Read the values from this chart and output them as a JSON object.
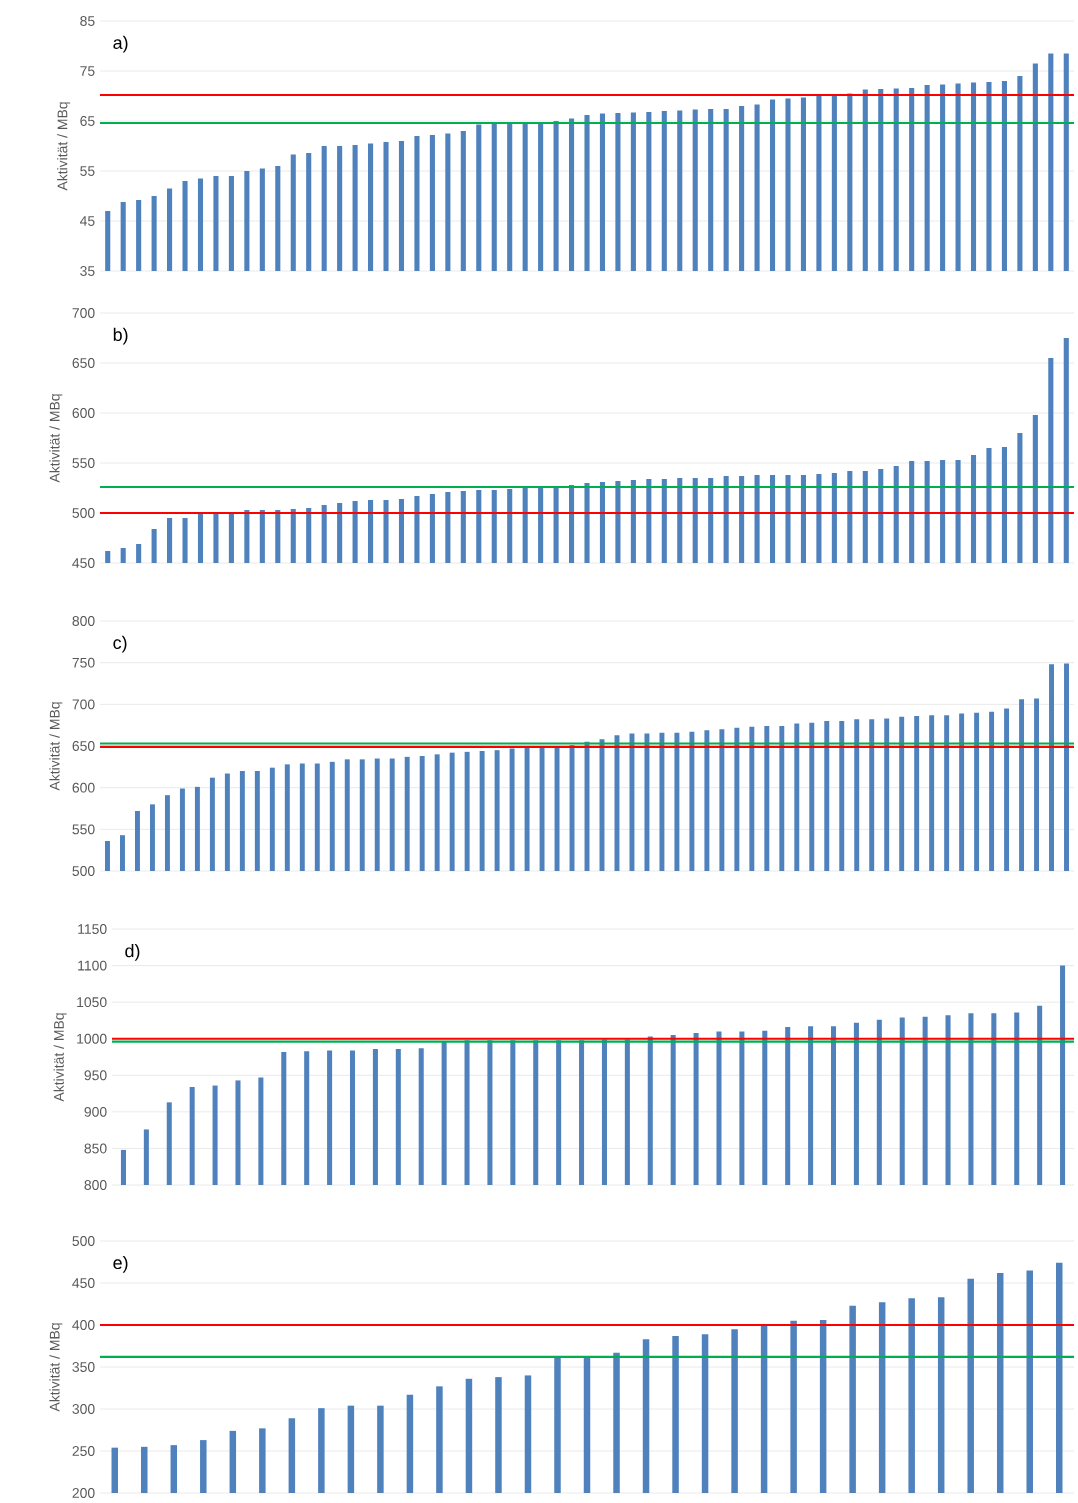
{
  "chart_data": [
    {
      "type": "bar",
      "ylabel": "Aktivität / MBq",
      "annotations": [
        "a)"
      ],
      "color": "#4f81bd",
      "grid": "y",
      "categories": [
        null,
        null,
        null,
        null,
        null,
        null,
        null,
        null,
        null,
        null,
        null,
        null,
        null,
        null,
        null,
        null,
        null,
        null,
        null,
        null,
        null,
        null,
        null,
        null,
        null,
        null,
        null,
        null,
        null,
        null,
        null,
        null,
        null,
        null,
        null,
        null,
        null,
        null,
        null,
        null,
        null,
        null,
        null,
        null,
        null,
        null,
        null,
        null,
        null,
        null,
        null,
        null,
        null,
        null,
        null,
        null,
        null,
        null,
        null,
        null,
        null,
        null,
        null
      ],
      "values": [
        47,
        48.8,
        49.2,
        50,
        51.5,
        53,
        53.5,
        54,
        54,
        55,
        55.5,
        56,
        58.3,
        58.6,
        60,
        60,
        60.2,
        60.5,
        60.8,
        61,
        62,
        62.2,
        62.5,
        63,
        64.3,
        64.5,
        64.6,
        64.7,
        64.8,
        65,
        65.5,
        66.2,
        66.5,
        66.6,
        66.7,
        66.8,
        67,
        67.1,
        67.3,
        67.4,
        67.4,
        68,
        68.3,
        69.3,
        69.5,
        69.7,
        70.3,
        70.4,
        70.5,
        71.3,
        71.4,
        71.5,
        71.6,
        72.2,
        72.3,
        72.5,
        72.7,
        72.8,
        73,
        74,
        76.5,
        78.5,
        78.5
      ],
      "ylim": [
        35,
        85
      ],
      "yticks": [
        35,
        45,
        55,
        65,
        75,
        85
      ],
      "ref_lines": [
        {
          "axis": "y",
          "value": 70.2,
          "color": "#ff0000"
        },
        {
          "axis": "y",
          "value": 64.6,
          "color": "#00b050"
        }
      ]
    },
    {
      "type": "bar",
      "ylabel": "Aktivität / MBq",
      "annotations": [
        "b)"
      ],
      "color": "#4f81bd",
      "grid": "y",
      "categories": [
        null,
        null,
        null,
        null,
        null,
        null,
        null,
        null,
        null,
        null,
        null,
        null,
        null,
        null,
        null,
        null,
        null,
        null,
        null,
        null,
        null,
        null,
        null,
        null,
        null,
        null,
        null,
        null,
        null,
        null,
        null,
        null,
        null,
        null,
        null,
        null,
        null,
        null,
        null,
        null,
        null,
        null,
        null,
        null,
        null,
        null,
        null,
        null,
        null,
        null,
        null,
        null,
        null,
        null,
        null,
        null,
        null,
        null,
        null,
        null,
        null,
        null,
        null
      ],
      "values": [
        462,
        465,
        469,
        484,
        495,
        495,
        500,
        500,
        500,
        503,
        503,
        503,
        504,
        505,
        508,
        510,
        512,
        513,
        513,
        514,
        517,
        519,
        521,
        522,
        523,
        523,
        524,
        525,
        525,
        527,
        528,
        530,
        531,
        532,
        533,
        534,
        534,
        535,
        535,
        535,
        537,
        537,
        538,
        538,
        538,
        538,
        539,
        540,
        542,
        542,
        544,
        547,
        552,
        552,
        553,
        553,
        558,
        565,
        566,
        580,
        598,
        655,
        675
      ],
      "ylim": [
        450,
        700
      ],
      "yticks": [
        450,
        500,
        550,
        600,
        650,
        700
      ],
      "ref_lines": [
        {
          "axis": "y",
          "value": 526,
          "color": "#00b050"
        },
        {
          "axis": "y",
          "value": 500,
          "color": "#ff0000"
        }
      ]
    },
    {
      "type": "bar",
      "ylabel": "Aktivität / MBq",
      "annotations": [
        "c)"
      ],
      "color": "#4f81bd",
      "grid": "y",
      "categories": [
        null,
        null,
        null,
        null,
        null,
        null,
        null,
        null,
        null,
        null,
        null,
        null,
        null,
        null,
        null,
        null,
        null,
        null,
        null,
        null,
        null,
        null,
        null,
        null,
        null,
        null,
        null,
        null,
        null,
        null,
        null,
        null,
        null,
        null,
        null,
        null,
        null,
        null,
        null,
        null,
        null,
        null,
        null,
        null,
        null,
        null,
        null,
        null,
        null,
        null,
        null,
        null,
        null,
        null,
        null,
        null,
        null,
        null,
        null,
        null,
        null,
        null,
        null,
        null,
        null
      ],
      "values": [
        536,
        543,
        572,
        580,
        591,
        599,
        601,
        612,
        617,
        620,
        620,
        624,
        628,
        629,
        629,
        631,
        634,
        634,
        635,
        635,
        637,
        638,
        640,
        642,
        643,
        644,
        645,
        647,
        648,
        649,
        650,
        651,
        655,
        658,
        663,
        665,
        665,
        666,
        666,
        667,
        669,
        670,
        672,
        673,
        674,
        674,
        677,
        678,
        680,
        680,
        682,
        682,
        683,
        685,
        686,
        687,
        687,
        689,
        690,
        691,
        695,
        706,
        707,
        748,
        749
      ],
      "ylim": [
        500,
        800
      ],
      "yticks": [
        500,
        550,
        600,
        650,
        700,
        750,
        800
      ],
      "ref_lines": [
        {
          "axis": "y",
          "value": 653,
          "color": "#00b050"
        },
        {
          "axis": "y",
          "value": 649,
          "color": "#ff0000"
        }
      ]
    },
    {
      "type": "bar",
      "ylabel": "Aktivität / MBq",
      "annotations": [
        "d)"
      ],
      "color": "#4f81bd",
      "grid": "y",
      "categories": [
        null,
        null,
        null,
        null,
        null,
        null,
        null,
        null,
        null,
        null,
        null,
        null,
        null,
        null,
        null,
        null,
        null,
        null,
        null,
        null,
        null,
        null,
        null,
        null,
        null,
        null,
        null,
        null,
        null,
        null,
        null,
        null,
        null,
        null,
        null,
        null,
        null,
        null,
        null,
        null,
        null,
        null
      ],
      "values": [
        848,
        876,
        913,
        934,
        936,
        943,
        947,
        982,
        983,
        984,
        984,
        986,
        986,
        987,
        997,
        998,
        998,
        998,
        998,
        998,
        998,
        999,
        999,
        1003,
        1005,
        1008,
        1010,
        1010,
        1011,
        1016,
        1017,
        1017,
        1022,
        1026,
        1029,
        1030,
        1032,
        1035,
        1035,
        1036,
        1045,
        1100
      ],
      "ylim": [
        800,
        1150
      ],
      "yticks": [
        800,
        850,
        900,
        950,
        1000,
        1050,
        1100,
        1150
      ],
      "ref_lines": [
        {
          "axis": "y",
          "value": 1000,
          "color": "#ff0000"
        },
        {
          "axis": "y",
          "value": 996,
          "color": "#00b050"
        }
      ]
    },
    {
      "type": "bar",
      "ylabel": "Aktivität / MBq",
      "annotations": [
        "e)"
      ],
      "color": "#4f81bd",
      "grid": "y",
      "categories": [
        null,
        null,
        null,
        null,
        null,
        null,
        null,
        null,
        null,
        null,
        null,
        null,
        null,
        null,
        null,
        null,
        null,
        null,
        null,
        null,
        null,
        null,
        null,
        null,
        null,
        null,
        null,
        null,
        null,
        null,
        null,
        null,
        null
      ],
      "values": [
        254,
        255,
        257,
        263,
        274,
        277,
        289,
        301,
        304,
        304,
        317,
        327,
        336,
        338,
        340,
        362,
        362,
        367,
        383,
        387,
        389,
        395,
        401,
        405,
        406,
        423,
        427,
        432,
        433,
        455,
        462,
        465,
        474
      ],
      "ylim": [
        200,
        500
      ],
      "yticks": [
        200,
        250,
        300,
        350,
        400,
        450,
        500
      ],
      "ref_lines": [
        {
          "axis": "y",
          "value": 400,
          "color": "#ff0000"
        },
        {
          "axis": "y",
          "value": 362,
          "color": "#00b050"
        }
      ]
    }
  ]
}
